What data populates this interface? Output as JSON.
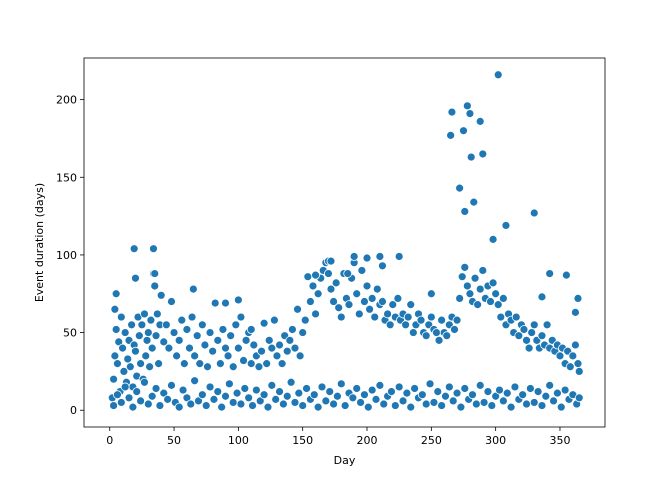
{
  "chart_data": {
    "type": "scatter",
    "title": "",
    "xlabel": "Day",
    "ylabel": "Event duration (days)",
    "xlim": [
      -20,
      385
    ],
    "ylim": [
      -10.8,
      226.8
    ],
    "xticks": [
      0,
      50,
      100,
      150,
      200,
      250,
      300,
      350
    ],
    "yticks": [
      0,
      50,
      100,
      150,
      200
    ],
    "grid": false,
    "legend": "none",
    "marker_color": "#1f77b4",
    "marker_edge_color": "#ffffff",
    "series": [
      {
        "x": [
          2,
          3,
          4,
          5,
          6,
          7,
          8,
          9,
          10,
          11,
          12,
          13,
          14,
          15,
          16,
          17,
          18,
          19,
          20,
          21,
          22,
          23,
          24,
          25,
          26,
          27,
          28,
          29,
          30,
          31,
          32,
          33,
          34,
          35,
          36,
          37,
          38,
          39,
          40,
          42,
          44,
          46,
          48,
          50,
          52,
          54,
          56,
          58,
          60,
          62,
          64,
          66,
          68,
          70,
          72,
          74,
          76,
          78,
          80,
          82,
          84,
          86,
          88,
          90,
          92,
          94,
          96,
          98,
          100,
          102,
          104,
          106,
          108,
          110,
          112,
          114,
          116,
          118,
          120,
          122,
          124,
          126,
          128,
          130,
          132,
          134,
          136,
          138,
          140,
          142,
          144,
          146,
          148,
          150,
          152,
          154,
          156,
          158,
          160,
          162,
          164,
          166,
          168,
          170,
          172,
          174,
          176,
          178,
          180,
          182,
          184,
          186,
          188,
          190,
          192,
          194,
          196,
          198,
          200,
          202,
          204,
          206,
          208,
          210,
          212,
          214,
          216,
          218,
          220,
          222,
          224,
          226,
          228,
          230,
          232,
          234,
          236,
          238,
          240,
          242,
          244,
          246,
          248,
          250,
          252,
          254,
          256,
          258,
          260,
          262,
          264,
          266,
          268,
          270,
          272,
          274,
          276,
          278,
          280,
          282,
          284,
          286,
          288,
          290,
          292,
          294,
          296,
          298,
          300,
          302,
          304,
          306,
          308,
          310,
          312,
          314,
          316,
          318,
          320,
          322,
          324,
          326,
          328,
          330,
          332,
          334,
          336,
          338,
          340,
          342,
          344,
          346,
          348,
          350,
          352,
          354,
          356,
          358,
          360,
          362,
          364,
          365,
          4,
          5,
          19,
          20,
          34,
          35,
          65,
          90,
          100,
          110,
          160,
          170,
          172,
          185,
          190,
          200,
          210,
          212,
          225,
          250,
          265,
          266,
          272,
          275,
          276,
          278,
          280,
          281,
          283,
          288,
          290,
          298,
          302,
          308,
          330,
          336,
          342,
          355,
          362,
          364
        ],
        "y": [
          8,
          20,
          35,
          52,
          30,
          44,
          12,
          60,
          40,
          25,
          50,
          18,
          33,
          45,
          28,
          55,
          15,
          42,
          38,
          22,
          60,
          48,
          30,
          55,
          20,
          62,
          35,
          45,
          50,
          28,
          58,
          40,
          88,
          80,
          48,
          62,
          30,
          55,
          74,
          44,
          55,
          40,
          70,
          50,
          35,
          45,
          58,
          30,
          52,
          40,
          60,
          35,
          48,
          30,
          55,
          42,
          28,
          50,
          38,
          69,
          45,
          30,
          52,
          40,
          35,
          48,
          28,
          55,
          40,
          60,
          32,
          45,
          50,
          30,
          42,
          35,
          28,
          38,
          56,
          30,
          45,
          40,
          58,
          35,
          42,
          30,
          48,
          38,
          45,
          52,
          40,
          65,
          35,
          50,
          58,
          86,
          70,
          80,
          62,
          75,
          85,
          90,
          95,
          88,
          78,
          70,
          82,
          66,
          60,
          88,
          72,
          68,
          85,
          95,
          75,
          62,
          90,
          70,
          80,
          65,
          72,
          60,
          78,
          68,
          70,
          58,
          62,
          55,
          68,
          60,
          72,
          58,
          62,
          55,
          60,
          68,
          50,
          55,
          62,
          58,
          50,
          48,
          55,
          60,
          52,
          50,
          45,
          58,
          50,
          48,
          55,
          60,
          52,
          58,
          72,
          86,
          92,
          80,
          75,
          70,
          85,
          68,
          78,
          90,
          72,
          80,
          70,
          82,
          75,
          68,
          60,
          72,
          55,
          62,
          58,
          50,
          60,
          48,
          55,
          52,
          45,
          40,
          50,
          55,
          45,
          40,
          48,
          42,
          55,
          40,
          45,
          38,
          42,
          35,
          40,
          30,
          38,
          28,
          35,
          42,
          30,
          25,
          65,
          75,
          104,
          85,
          104,
          88,
          78,
          69,
          71,
          52,
          87,
          96,
          96,
          88,
          99,
          98,
          99,
          93,
          99,
          75,
          177,
          192,
          143,
          180,
          128,
          196,
          191,
          163,
          134,
          186,
          165,
          110,
          216,
          119,
          127,
          73,
          88,
          87,
          63,
          72
        ]
      },
      {
        "name": "",
        "x": [
          3,
          6,
          9,
          12,
          15,
          18,
          21,
          24,
          27,
          30,
          33,
          36,
          39,
          42,
          45,
          48,
          51,
          54,
          57,
          60,
          63,
          66,
          69,
          72,
          75,
          78,
          81,
          84,
          87,
          90,
          93,
          96,
          99,
          102,
          105,
          108,
          111,
          114,
          117,
          120,
          123,
          126,
          129,
          132,
          135,
          138,
          141,
          144,
          147,
          150,
          153,
          156,
          159,
          162,
          165,
          168,
          171,
          174,
          177,
          180,
          183,
          186,
          189,
          192,
          195,
          198,
          201,
          204,
          207,
          210,
          213,
          216,
          219,
          222,
          225,
          228,
          231,
          234,
          237,
          240,
          243,
          246,
          249,
          252,
          255,
          258,
          261,
          264,
          267,
          270,
          273,
          276,
          279,
          282,
          285,
          288,
          291,
          294,
          297,
          300,
          303,
          306,
          309,
          312,
          315,
          318,
          321,
          324,
          327,
          330,
          333,
          336,
          339,
          342,
          345,
          348,
          351,
          354,
          357,
          360,
          363,
          365
        ],
        "y": [
          3,
          10,
          5,
          15,
          8,
          2,
          12,
          6,
          18,
          4,
          9,
          14,
          3,
          11,
          7,
          16,
          5,
          2,
          13,
          8,
          4,
          19,
          6,
          10,
          3,
          15,
          7,
          12,
          2,
          9,
          17,
          5,
          11,
          4,
          14,
          8,
          3,
          13,
          6,
          10,
          2,
          16,
          7,
          12,
          4,
          9,
          18,
          5,
          11,
          3,
          14,
          7,
          10,
          2,
          15,
          6,
          12,
          4,
          9,
          17,
          3,
          11,
          8,
          14,
          5,
          10,
          2,
          13,
          7,
          16,
          4,
          9,
          12,
          3,
          15,
          6,
          11,
          2,
          14,
          8,
          10,
          4,
          17,
          5,
          12,
          3,
          9,
          15,
          6,
          11,
          2,
          14,
          7,
          10,
          4,
          16,
          5,
          12,
          3,
          9,
          13,
          6,
          11,
          2,
          15,
          7,
          10,
          4,
          14,
          5,
          12,
          3,
          9,
          16,
          6,
          11,
          2,
          13,
          7,
          10,
          4,
          8
        ]
      }
    ]
  }
}
